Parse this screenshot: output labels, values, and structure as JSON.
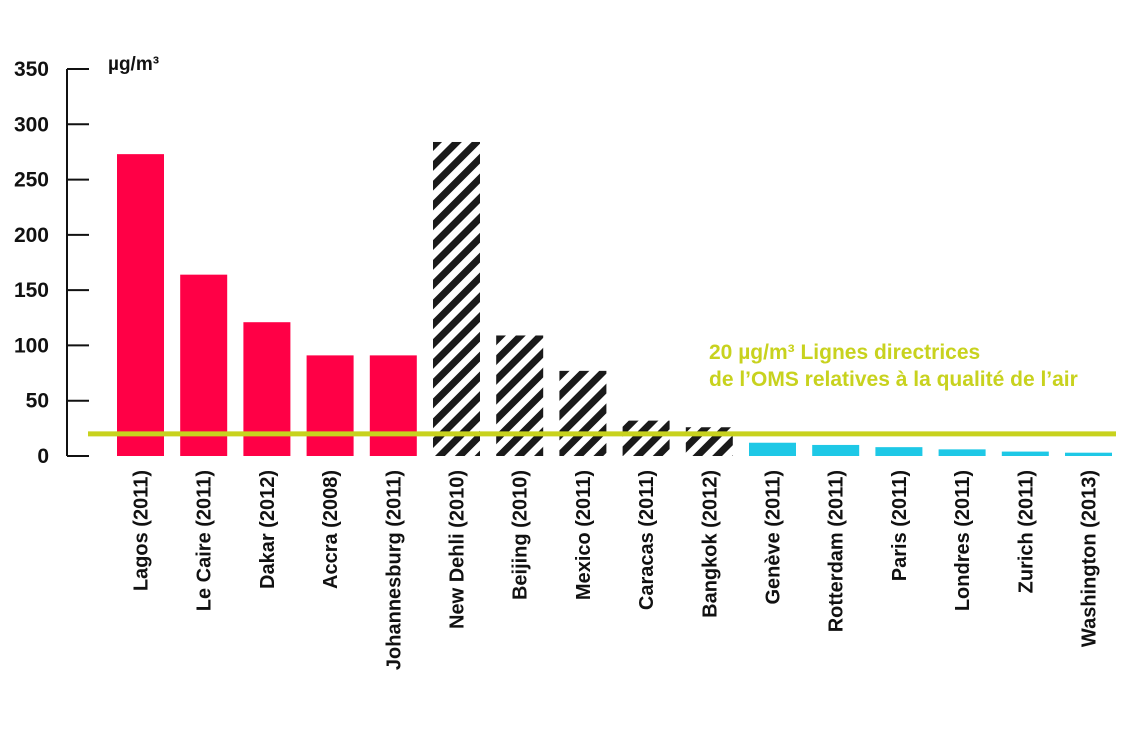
{
  "chart_data": {
    "type": "bar",
    "unit": "µg/m³",
    "ylim": [
      0,
      350
    ],
    "yticks": [
      0,
      50,
      100,
      150,
      200,
      250,
      300,
      350
    ],
    "categories": [
      "Lagos (2011)",
      "Le Caire (2011)",
      "Dakar (2012)",
      "Accra (2008)",
      "Johannesburg (2011)",
      "New Dehli (2010)",
      "Beijing (2010)",
      "Mexico (2011)",
      "Caracas (2011)",
      "Bangkok (2012)",
      "Genève (2011)",
      "Rotterdam (2011)",
      "Paris (2011)",
      "Londres (2011)",
      "Zurich (2011)",
      "Washington (2013)"
    ],
    "values": [
      273,
      164,
      121,
      91,
      91,
      284,
      109,
      77,
      32,
      26,
      12,
      10,
      8,
      6,
      4,
      3
    ],
    "groups": [
      "red",
      "red",
      "red",
      "red",
      "red",
      "hatched",
      "hatched",
      "hatched",
      "hatched",
      "hatched",
      "cyan",
      "cyan",
      "cyan",
      "cyan",
      "cyan",
      "cyan"
    ],
    "colors": {
      "red": "#ff0046",
      "hatched": "#1a1a1a",
      "cyan": "#1ec8e6",
      "reference": "#c8d21e",
      "axis": "#111111"
    },
    "reference_line": {
      "value": 20,
      "label_line1": "20 µg/m³ Lignes directrices",
      "label_line2": "de l’OMS relatives à la qualité de l’air"
    }
  }
}
